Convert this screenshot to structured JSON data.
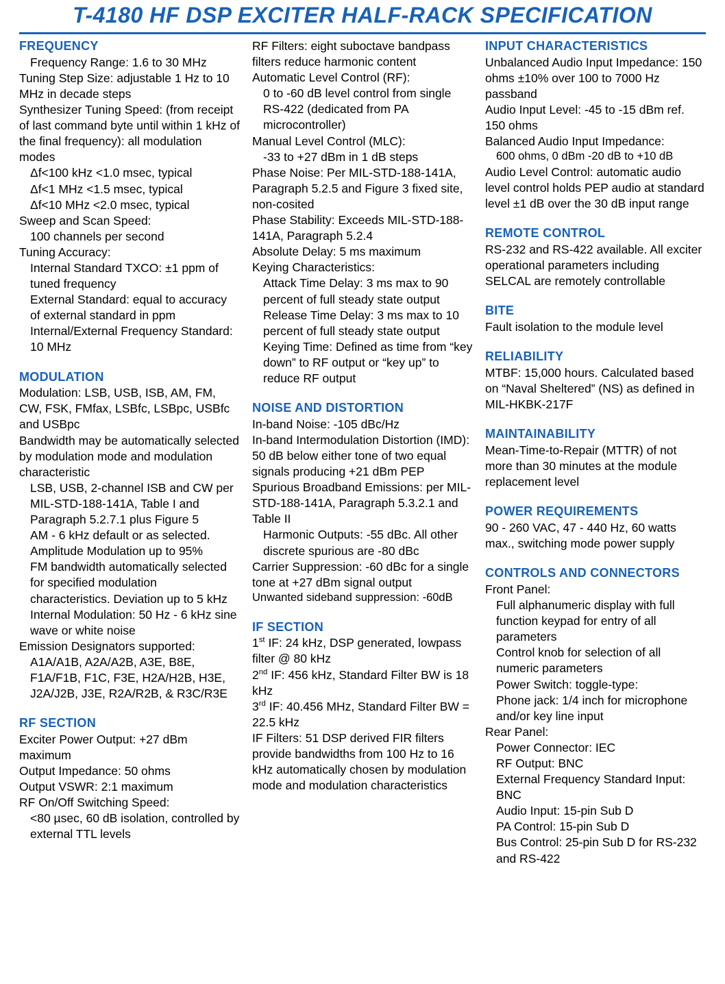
{
  "title": "T-4180 HF DSP EXCITER HALF-RACK SPECIFICATION",
  "colors": {
    "heading": "#1862b8",
    "rule": "#1862b8",
    "text": "#000000",
    "bg": "#ffffff"
  },
  "font_sizes": {
    "title": 32,
    "heading": 18,
    "body": 17.5
  },
  "columns": 3,
  "col1": {
    "h_frequency": "FREQUENCY",
    "f1": "Frequency Range: 1.6 to 30 MHz",
    "f2": "Tuning Step Size:  adjustable 1 Hz to 10 MHz in decade steps",
    "f3": "Synthesizer Tuning Speed: (from receipt of last command byte until within 1 kHz of the final frequency): all modulation modes",
    "f3a": "Δf<100 kHz  <1.0 msec, typical",
    "f3b": "Δf<1 MHz    <1.5 msec, typical",
    "f3c": "Δf<10 MHz  <2.0 msec, typical",
    "f4": "Sweep and Scan Speed:",
    "f4a": "100 channels per second",
    "f5": "Tuning Accuracy:",
    "f5a": "Internal Standard TXCO: ±1 ppm of tuned frequency",
    "f5b": "External Standard: equal to accuracy of external standard in ppm",
    "f5c": "Internal/External Frequency Standard: 10 MHz",
    "h_mod": "MODULATION",
    "m1": "Modulation: LSB, USB, ISB, AM, FM, CW, FSK, FMfax, LSBfc, LSBpc, USBfc and USBpc",
    "m2": "Bandwidth may be automatically selected by modulation mode and modulation characteristic",
    "m2a": "LSB, USB, 2-channel ISB and CW per MIL-STD-188-141A, Table I and Paragraph 5.2.7.1 plus Figure 5",
    "m2b": "AM - 6 kHz default or as selected. Amplitude Modulation up to 95%",
    "m2c": "FM bandwidth automatically selected for specified modulation characteristics. Deviation up to 5 kHz",
    "m2d": "Internal Modulation: 50 Hz - 6 kHz sine wave or white noise",
    "m3": "Emission Designators  supported:",
    "m3a": "A1A/A1B, A2A/A2B, A3E, B8E, F1A/F1B, F1C, F3E, H2A/H2B, H3E, J2A/J2B, J3E, R2A/R2B, & R3C/R3E",
    "h_rf": "RF SECTION",
    "r1": "Exciter Power Output: +27 dBm maximum",
    "r2": "Output Impedance: 50 ohms",
    "r3": "Output VSWR: 2:1 maximum",
    "r4": "RF On/Off Switching Speed:",
    "r4a": "<80 µsec, 60 dB isolation, controlled by external TTL levels"
  },
  "col2": {
    "r5": "RF Filters:  eight suboctave bandpass filters reduce harmonic content",
    "r6": "Automatic Level Control (RF):",
    "r6a": "0 to -60 dB level control from single RS-422 (dedicated from PA microcontroller)",
    "r7": "Manual Level Control (MLC):",
    "r7a": "-33 to +27 dBm in 1 dB steps",
    "r8": "Phase Noise: Per MIL-STD-188-141A, Paragraph 5.2.5 and Figure 3 fixed site, non-cosited",
    "r9": "Phase Stability: Exceeds MIL-STD-188-141A, Paragraph 5.2.4",
    "r10": "Absolute Delay: 5 ms maximum",
    "r11": "Keying Characteristics:",
    "r11a": "Attack Time Delay: 3 ms max  to 90 percent of full steady state output",
    "r11b": "Release Time Delay: 3 ms max  to 10 percent of full steady state output",
    "r11c": "Keying Time: Defined as time from “key down” to RF output or “key up” to reduce RF output",
    "h_noise": "NOISE AND DISTORTION",
    "n1": "In-band Noise: -105 dBc/Hz",
    "n2": "In-band Intermodulation Distortion (IMD): 50 dB below either tone of two equal signals producing +21 dBm PEP",
    "n3": "Spurious Broadband Emissions: per MIL-STD-188-141A, Paragraph 5.3.2.1 and Table II",
    "n3a": "Harmonic Outputs: -55 dBc.  All other discrete spurious are  -80 dBc",
    "n4": "Carrier Suppression: -60 dBc for a single tone at +27 dBm signal output",
    "n5": "Unwanted sideband suppression: -60dB",
    "h_if": "IF SECTION",
    "if1_pre": "1",
    "if1_sup": "st",
    "if1_post": " IF: 24 kHz, DSP generated, lowpass filter @ 80 kHz",
    "if2_pre": "2",
    "if2_sup": "nd",
    "if2_post": " IF: 456 kHz, Standard Filter BW is 18 kHz",
    "if3_pre": "3",
    "if3_sup": "rd",
    "if3_post": " IF: 40.456 MHz, Standard Filter BW = 22.5 kHz",
    "if4": "IF Filters: 51 DSP derived FIR filters provide bandwidths from 100 Hz to 16 kHz automatically chosen by modulation mode and modulation characteristics"
  },
  "col3": {
    "h_input": "INPUT CHARACTERISTICS",
    "i1": "Unbalanced Audio Input Impedance: 150 ohms ±10% over 100 to 7000 Hz passband",
    "i2": "Audio Input Level: -45 to -15 dBm ref. 150 ohms",
    "i3": "Balanced Audio Input Impedance:",
    "i3a": "600 ohms, 0 dBm -20 dB to +10 dB",
    "i4": "Audio Level Control:  automatic audio level control holds PEP audio at standard level ±1 dB over the 30 dB input range",
    "h_remote": "REMOTE CONTROL",
    "rc1": "RS-232 and RS-422 available. All exciter operational parameters including SELCAL are remotely controllable",
    "h_bite": "BITE",
    "b1": "Fault isolation to the module level",
    "h_rel": "RELIABILITY",
    "rl1": "MTBF: 15,000 hours. Calculated based on “Naval Sheltered” (NS) as defined in MIL-HKBK-217F",
    "h_maint": "MAINTAINABILITY",
    "mt1": "Mean-Time-to-Repair (MTTR) of not more than 30 minutes at the module replacement level",
    "h_power": "POWER REQUIREMENTS",
    "pw1": "90 - 260 VAC, 47 - 440 Hz, 60 watts max., switching mode power supply",
    "h_ctrl": "CONTROLS AND CONNECTORS",
    "c_fp": "Front Panel:",
    "c_fp1": "Full alphanumeric display with full function keypad for entry of all parameters",
    "c_fp2": "Control knob for selection of all numeric parameters",
    "c_fp3": "Power Switch: toggle-type:",
    "c_fp4": "Phone jack:  1/4 inch for microphone and/or key line input",
    "c_rp": "Rear Panel:",
    "c_rp1": "Power Connector: IEC",
    "c_rp2": "RF Output: BNC",
    "c_rp3": "External Frequency Standard Input:  BNC",
    "c_rp4": "Audio Input: 15-pin Sub D",
    "c_rp5": "PA Control: 15-pin Sub D",
    "c_rp6": "Bus Control: 25-pin Sub D for RS-232 and RS-422"
  }
}
